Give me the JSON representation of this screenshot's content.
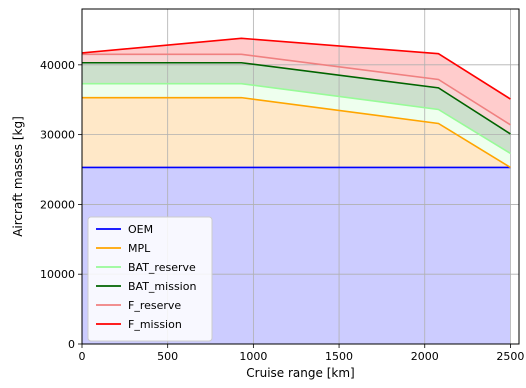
{
  "chart_data": {
    "type": "area",
    "title": "",
    "xlabel": "Cruise range [km]",
    "ylabel": "Aircraft masses [kg]",
    "xlim": [
      0,
      2550
    ],
    "ylim": [
      0,
      48000
    ],
    "x_ticks": [
      0,
      500,
      1000,
      1500,
      2000,
      2500
    ],
    "y_ticks": [
      0,
      10000,
      20000,
      30000,
      40000
    ],
    "grid": true,
    "legend_position": "lower-left",
    "x": [
      0,
      930,
      2080,
      2500
    ],
    "series": [
      {
        "name": "OEM",
        "color": "#0000ff",
        "fill": "#ccccff",
        "values": [
          25300,
          25300,
          25300,
          25300
        ]
      },
      {
        "name": "MPL",
        "color": "#ffa500",
        "fill": "#ffe8c8",
        "values": [
          35300,
          35300,
          31600,
          25300
        ]
      },
      {
        "name": "BAT_reserve",
        "color": "#98fb98",
        "fill": "#eeffee",
        "values": [
          37300,
          37300,
          33600,
          27300
        ]
      },
      {
        "name": "BAT_mission",
        "color": "#006400",
        "fill": "#cce0cc",
        "values": [
          40300,
          40300,
          36700,
          30100
        ]
      },
      {
        "name": "F_reserve",
        "color": "#f08080",
        "fill": "#f9d6d6",
        "values": [
          41500,
          41500,
          37900,
          31400
        ]
      },
      {
        "name": "F_mission",
        "color": "#ff0000",
        "fill": "#ffcccc",
        "values": [
          41700,
          43800,
          41600,
          35100
        ]
      }
    ]
  }
}
